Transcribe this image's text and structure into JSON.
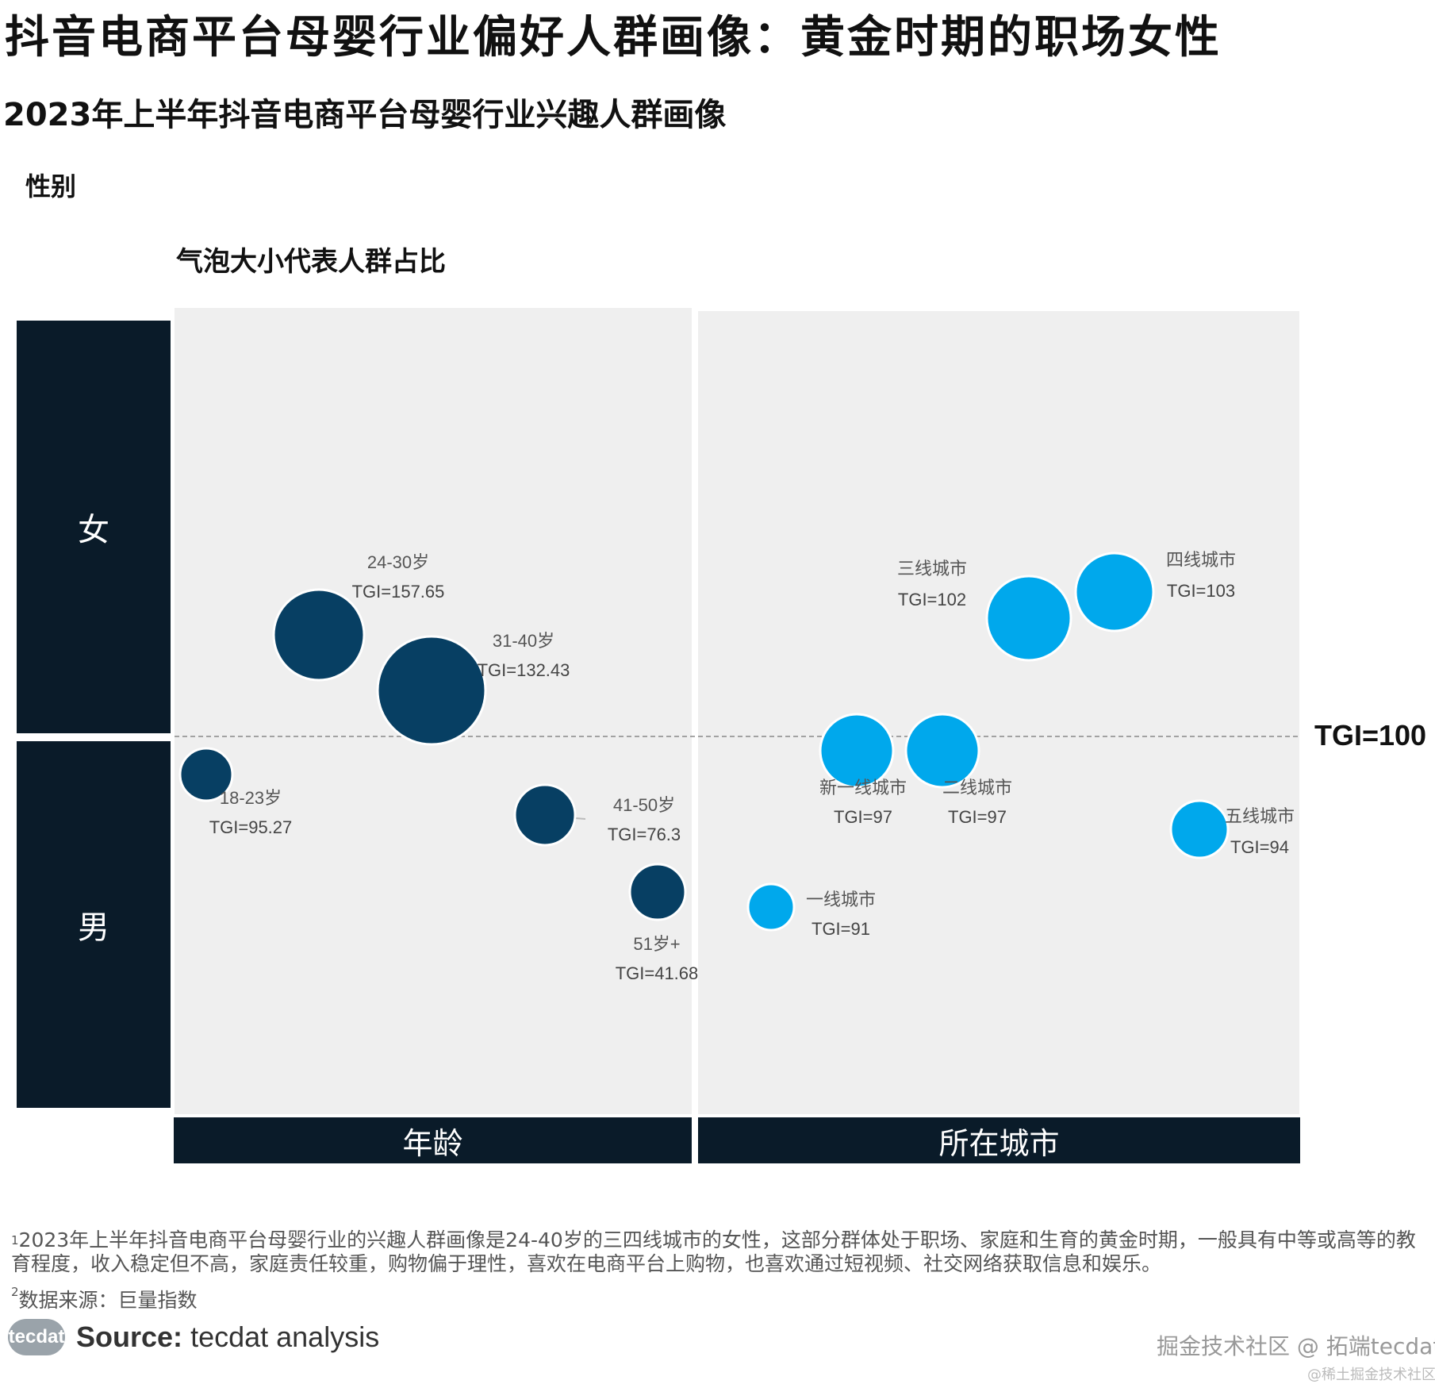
{
  "title": "抖音电商平台母婴行业偏好人群画像：黄金时期的职场女性",
  "subtitle": "2023年上半年抖音电商平台母婴行业兴趣人群画像",
  "y_axis_label": "性别",
  "size_note": "气泡大小代表人群占比",
  "y_categories": {
    "top": "女",
    "bottom": "男"
  },
  "x_categories": {
    "left": "年龄",
    "right": "所在城市"
  },
  "reference": {
    "label": "TGI=100",
    "value": 100
  },
  "colors": {
    "age": "#073f63",
    "city": "#00a8ec",
    "dark_box": "#0a1b29",
    "panel": "#efefef"
  },
  "chart_data": {
    "type": "bubble",
    "title": "",
    "y_reference": 100,
    "panels": [
      {
        "name": "年龄",
        "points": [
          {
            "label": "18-23岁",
            "tgi": "TGI=95.27",
            "y": 95.27
          },
          {
            "label": "24-30岁",
            "tgi": "TGI=157.65",
            "y": 157.65
          },
          {
            "label": "31-40岁",
            "tgi": "TGI=132.43",
            "y": 132.43
          },
          {
            "label": "41-50岁",
            "tgi": "TGI=76.3",
            "y": 76.3
          },
          {
            "label": "51岁+",
            "tgi": "TGI=41.68",
            "y": 41.68
          }
        ]
      },
      {
        "name": "所在城市",
        "points": [
          {
            "label": "一线城市",
            "tgi": "TGI=91",
            "y": 91
          },
          {
            "label": "新一线城市",
            "tgi": "TGI=97",
            "y": 97
          },
          {
            "label": "二线城市",
            "tgi": "TGI=97",
            "y": 97
          },
          {
            "label": "三线城市",
            "tgi": "TGI=102",
            "y": 102
          },
          {
            "label": "四线城市",
            "tgi": "TGI=103",
            "y": 103
          },
          {
            "label": "五线城市",
            "tgi": "TGI=94",
            "y": 94
          }
        ]
      }
    ]
  },
  "footnote1": "2023年上半年抖音电商平台母婴行业的兴趣人群画像是24-40岁的三四线城市的女性，这部分群体处于职场、家庭和生育的黄金时期，一般具有中等或高等的教育程度，收入稳定但不高，家庭责任较重，购物偏于理性，喜欢在电商平台上购物，也喜欢通过短视频、社交网络获取信息和娱乐。",
  "footnote1_mark": "1",
  "footnote2": "数据来源：巨量指数",
  "footnote2_mark": "2",
  "logo_text": "tecdat",
  "source_label": "Source:",
  "source_text": "tecdat analysis",
  "watermark": "掘金技术社区 @ 拓端tecdat",
  "watermark2": "@稀土掘金技术社区"
}
